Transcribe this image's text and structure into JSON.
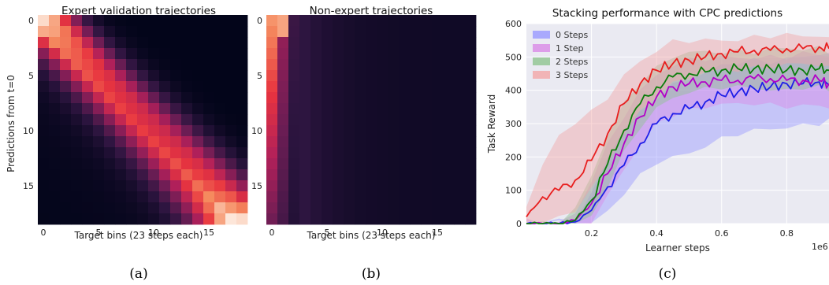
{
  "chart_data": [
    {
      "type": "heatmap",
      "panel": "(a)",
      "title": "Expert validation trajectories",
      "xlabel": "Target bins (23 steps each)",
      "ylabel": "Predictions from t=0",
      "xticks": [
        0,
        5,
        10,
        15
      ],
      "yticks": [
        0,
        5,
        10,
        15
      ],
      "rows": 19,
      "cols": 19,
      "pattern": "bright diagonal band from (0,0) to (18,18); brightest cells near top-left and bottom-right",
      "colormap": [
        "#03051a",
        "#2e1540",
        "#6b1d54",
        "#b0205a",
        "#e8343f",
        "#f58a5e",
        "#fde6d9"
      ]
    },
    {
      "type": "heatmap",
      "panel": "(b)",
      "title": "Non-expert trajectories",
      "xlabel": "Target bins (23 steps each)",
      "xticks": [
        0,
        5,
        10,
        15
      ],
      "yticks": [
        0,
        5,
        10,
        15
      ],
      "rows": 19,
      "cols": 19,
      "pattern": "bright only in first 1-2 columns, fading quickly; rest very dark"
    },
    {
      "type": "line",
      "panel": "(c)",
      "title": "Stacking performance with CPC predictions",
      "xlabel": "Learner steps",
      "ylabel": "Task Reward",
      "x_scale_label": "1e6",
      "xlim": [
        0,
        0.93
      ],
      "ylim": [
        0,
        600
      ],
      "xticks": [
        0.2,
        0.4,
        0.6,
        0.8
      ],
      "yticks": [
        0,
        100,
        200,
        300,
        400,
        500,
        600
      ],
      "grid": true,
      "legend_position": "top-left",
      "x": [
        0.0,
        0.05,
        0.1,
        0.15,
        0.2,
        0.25,
        0.3,
        0.35,
        0.4,
        0.45,
        0.5,
        0.55,
        0.6,
        0.65,
        0.7,
        0.75,
        0.8,
        0.85,
        0.9,
        0.93
      ],
      "series": [
        {
          "name": "0 Steps",
          "color": "#1f1fe8",
          "band": "#9999ff",
          "values": [
            0,
            0,
            0,
            5,
            40,
            110,
            175,
            240,
            300,
            330,
            345,
            365,
            385,
            395,
            405,
            410,
            420,
            420,
            425,
            415
          ],
          "lower": [
            0,
            0,
            0,
            0,
            5,
            40,
            90,
            140,
            180,
            200,
            215,
            235,
            255,
            265,
            275,
            285,
            290,
            300,
            300,
            305
          ],
          "upper": [
            5,
            5,
            10,
            20,
            90,
            200,
            280,
            330,
            380,
            420,
            440,
            450,
            470,
            480,
            490,
            490,
            500,
            500,
            505,
            500
          ]
        },
        {
          "name": "1 Step",
          "color": "#b200c8",
          "band": "#d98ae6",
          "values": [
            0,
            0,
            0,
            10,
            60,
            150,
            240,
            320,
            380,
            410,
            420,
            425,
            430,
            430,
            435,
            435,
            430,
            430,
            430,
            420
          ],
          "lower": [
            0,
            0,
            0,
            0,
            10,
            80,
            160,
            230,
            300,
            330,
            345,
            350,
            355,
            355,
            360,
            360,
            355,
            355,
            350,
            345
          ],
          "upper": [
            5,
            5,
            10,
            30,
            130,
            230,
            320,
            400,
            450,
            480,
            490,
            490,
            495,
            500,
            500,
            505,
            500,
            505,
            505,
            500
          ]
        },
        {
          "name": "2 Steps",
          "color": "#0a7d0a",
          "band": "#8fc48f",
          "values": [
            0,
            0,
            0,
            10,
            70,
            180,
            280,
            360,
            410,
            440,
            450,
            455,
            460,
            465,
            465,
            465,
            460,
            460,
            465,
            460
          ],
          "lower": [
            0,
            0,
            0,
            0,
            20,
            110,
            210,
            290,
            350,
            380,
            395,
            400,
            405,
            410,
            410,
            405,
            400,
            405,
            405,
            400
          ],
          "upper": [
            5,
            5,
            10,
            40,
            140,
            260,
            360,
            430,
            470,
            500,
            510,
            510,
            515,
            520,
            520,
            525,
            520,
            520,
            525,
            520
          ]
        },
        {
          "name": "3 Steps",
          "color": "#e81e1e",
          "band": "#f2a6a6",
          "values": [
            20,
            80,
            100,
            130,
            190,
            270,
            360,
            420,
            460,
            480,
            490,
            500,
            510,
            515,
            520,
            520,
            525,
            525,
            530,
            525
          ],
          "lower": [
            0,
            10,
            20,
            40,
            100,
            180,
            270,
            340,
            390,
            420,
            435,
            450,
            460,
            465,
            470,
            470,
            475,
            475,
            475,
            470
          ],
          "upper": [
            60,
            180,
            260,
            300,
            330,
            380,
            450,
            490,
            520,
            540,
            545,
            550,
            555,
            555,
            560,
            560,
            560,
            565,
            565,
            560
          ]
        }
      ]
    }
  ],
  "captions": [
    "(a)",
    "(b)",
    "(c)"
  ]
}
